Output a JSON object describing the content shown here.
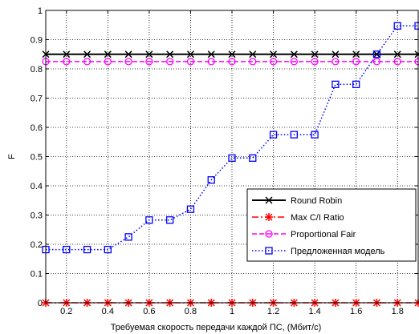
{
  "chart_data": {
    "type": "line",
    "xlabel": "Требуемая скорость передачи каждой ПС, (Мбит/с)",
    "ylabel": "F",
    "xlim": [
      0.1,
      1.9
    ],
    "ylim": [
      0,
      1
    ],
    "xticks": [
      0.2,
      0.4,
      0.6,
      0.8,
      1,
      1.2,
      1.4,
      1.6,
      1.8
    ],
    "xtick_labels": [
      "0.2",
      "0.4",
      "0.6",
      "0.8",
      "1",
      "1.2",
      "1.4",
      "1.6",
      "1.8"
    ],
    "yticks": [
      0,
      0.1,
      0.2,
      0.3,
      0.4,
      0.5,
      0.6,
      0.7,
      0.8,
      0.9,
      1
    ],
    "ytick_labels": [
      "0",
      "0.1",
      "0.2",
      "0.3",
      "0.4",
      "0.5",
      "0.6",
      "0.7",
      "0.8",
      "0.9",
      "1"
    ],
    "grid": true,
    "legend_position": "bottom-right",
    "x": [
      0.1,
      0.2,
      0.3,
      0.4,
      0.5,
      0.6,
      0.7,
      0.8,
      0.9,
      1.0,
      1.1,
      1.2,
      1.3,
      1.4,
      1.5,
      1.6,
      1.7,
      1.8,
      1.9
    ],
    "series": [
      {
        "name": "Round Robin",
        "color": "#000000",
        "line_style": "solid",
        "marker": "x",
        "values": [
          0.85,
          0.85,
          0.85,
          0.85,
          0.85,
          0.85,
          0.85,
          0.85,
          0.85,
          0.85,
          0.85,
          0.85,
          0.85,
          0.85,
          0.85,
          0.85,
          0.85,
          0.85,
          0.85
        ]
      },
      {
        "name": "Max C/I Ratio",
        "color": "#ff0000",
        "line_style": "dashdot",
        "marker": "asterisk",
        "values": [
          0,
          0,
          0,
          0,
          0,
          0,
          0,
          0,
          0,
          0,
          0,
          0,
          0,
          0,
          0,
          0,
          0,
          0,
          0
        ]
      },
      {
        "name": "Proportional Fair",
        "color": "#ff00ff",
        "line_style": "dashed",
        "marker": "circle",
        "values": [
          0.825,
          0.825,
          0.825,
          0.825,
          0.825,
          0.825,
          0.825,
          0.825,
          0.825,
          0.825,
          0.825,
          0.825,
          0.825,
          0.825,
          0.825,
          0.825,
          0.825,
          0.825,
          0.825
        ]
      },
      {
        "name": "Предложенная модель",
        "color": "#0000ff",
        "line_style": "dotted",
        "marker": "square",
        "values": [
          0.182,
          0.182,
          0.182,
          0.182,
          0.225,
          0.283,
          0.283,
          0.32,
          0.42,
          0.495,
          0.495,
          0.575,
          0.575,
          0.575,
          0.747,
          0.747,
          0.85,
          0.947,
          0.947
        ]
      }
    ]
  }
}
